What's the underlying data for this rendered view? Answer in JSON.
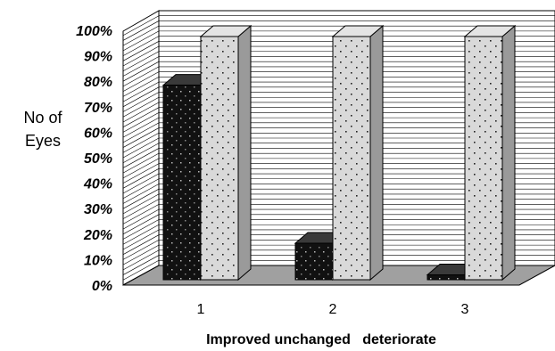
{
  "chart_data": {
    "type": "bar",
    "categories": [
      "1",
      "2",
      "3"
    ],
    "series": [
      {
        "values": [
          80,
          15,
          2
        ],
        "color": "#1a1a1a"
      },
      {
        "values": [
          100,
          100,
          100
        ],
        "color": "#d8d8d8"
      }
    ],
    "ylabel_lines": [
      "No of",
      "Eyes"
    ],
    "xlabel": "Improved unchanged   deteriorate",
    "y_ticks": [
      "0%",
      "10%",
      "20%",
      "30%",
      "40%",
      "50%",
      "60%",
      "70%",
      "80%",
      "90%",
      "100%"
    ],
    "ylim": [
      0,
      100
    ],
    "grid": true,
    "style": "3d-column",
    "floor_color": "#a0a0a0",
    "legend": "none"
  }
}
